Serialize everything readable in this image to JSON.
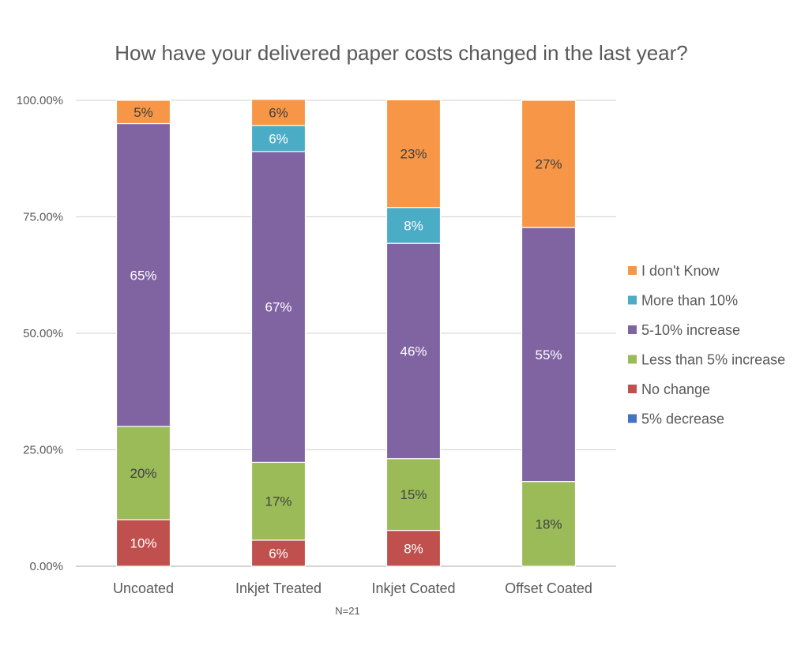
{
  "chart_data": {
    "type": "bar",
    "stacked": true,
    "title": "How have your delivered paper costs changed in the last year?",
    "xlabel": "",
    "ylabel": "",
    "note": "N=21",
    "categories": [
      "Uncoated",
      "Inkjet Treated",
      "Inkjet Coated",
      "Offset Coated"
    ],
    "ylim": [
      0,
      100
    ],
    "yticks": [
      0,
      25,
      50,
      75,
      100
    ],
    "ytick_labels": [
      "0.00%",
      "25.00%",
      "50.00%",
      "75.00%",
      "100.00%"
    ],
    "grid": true,
    "legend_position": "right",
    "series": [
      {
        "name": "5% decrease",
        "color": "#4472C4",
        "values": [
          0,
          0,
          0,
          0
        ],
        "labels": [
          "",
          "",
          "",
          ""
        ],
        "label_color": "#ffffff"
      },
      {
        "name": "No change",
        "color": "#C0504D",
        "values": [
          10,
          5.6,
          7.7,
          0
        ],
        "labels": [
          "10%",
          "6%",
          "8%",
          ""
        ],
        "label_color": "#ffffff"
      },
      {
        "name": "Less than 5% increase",
        "color": "#9BBB59",
        "values": [
          20,
          16.7,
          15.4,
          18.2
        ],
        "labels": [
          "20%",
          "17%",
          "15%",
          "18%"
        ],
        "label_color": "#404040"
      },
      {
        "name": "5-10% increase",
        "color": "#8064A2",
        "values": [
          65,
          66.7,
          46.2,
          54.5
        ],
        "labels": [
          "65%",
          "67%",
          "46%",
          "55%"
        ],
        "label_color": "#ffffff"
      },
      {
        "name": "More than 10%",
        "color": "#4BACC6",
        "values": [
          0,
          5.6,
          7.7,
          0
        ],
        "labels": [
          "",
          "6%",
          "8%",
          ""
        ],
        "label_color": "#ffffff"
      },
      {
        "name": "I don't Know",
        "color": "#F79646",
        "values": [
          5,
          5.6,
          23.1,
          27.3
        ],
        "labels": [
          "5%",
          "6%",
          "23%",
          "27%"
        ],
        "label_color": "#404040"
      }
    ]
  }
}
